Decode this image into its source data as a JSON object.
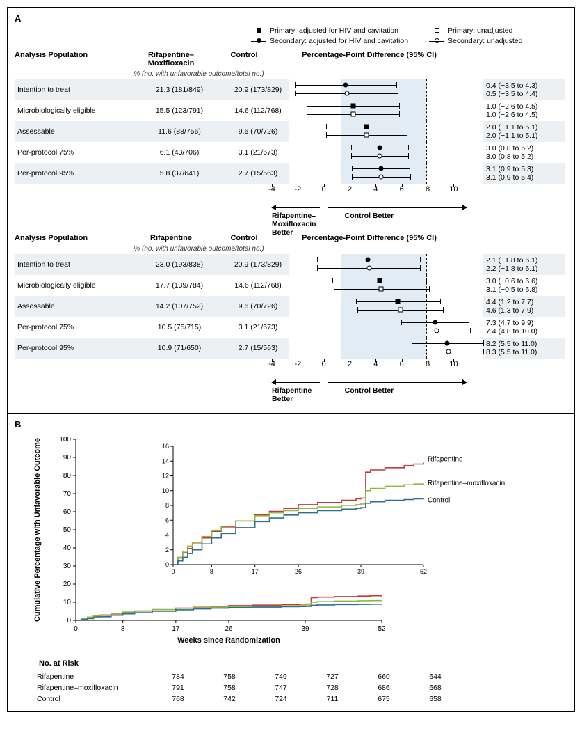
{
  "legend": {
    "items": [
      {
        "sym": "filled-square",
        "label": "Primary: adjusted for HIV and cavitation"
      },
      {
        "sym": "filled-circle",
        "label": "Secondary: adjusted for HIV and cavitation"
      },
      {
        "sym": "open-square",
        "label": "Primary: unadjusted"
      },
      {
        "sym": "open-circle",
        "label": "Secondary: unadjusted"
      }
    ]
  },
  "panelA": {
    "label": "A",
    "shade_from": 0,
    "shade_to": 6.6,
    "xmin": -4,
    "xmax": 11,
    "ticks": [
      -4,
      -2,
      0,
      2,
      4,
      6,
      8,
      10
    ],
    "forests": [
      {
        "armLabel": "Rifapentine–Moxifloxacin",
        "ctrlLabel": "Control",
        "ppdLabel": "Percentage-Point Difference (95% CI)",
        "subhead": "% (no. with unfavorable outcome/total no.)",
        "betterLeft": "Rifapentine–Moxifloxacin Better",
        "betterRight": "Control Better",
        "rows": [
          {
            "pop": "Intention to treat",
            "arm": "21.3 (181/849)",
            "ctrl": "20.9 (173/829)",
            "lines": [
              {
                "sym": "filled-circle",
                "est": 0.4,
                "lo": -3.5,
                "hi": 4.3,
                "txt": "0.4 (−3.5 to 4.3)"
              },
              {
                "sym": "open-circle",
                "est": 0.5,
                "lo": -3.5,
                "hi": 4.4,
                "txt": "0.5 (−3.5 to 4.4)"
              }
            ]
          },
          {
            "pop": "Microbiologically eligible",
            "arm": "15.5 (123/791)",
            "ctrl": "14.6 (112/768)",
            "lines": [
              {
                "sym": "filled-square",
                "est": 1.0,
                "lo": -2.6,
                "hi": 4.5,
                "txt": "1.0 (−2.6 to 4.5)"
              },
              {
                "sym": "open-square",
                "est": 1.0,
                "lo": -2.6,
                "hi": 4.5,
                "txt": "1.0 (−2.6 to 4.5)"
              }
            ]
          },
          {
            "pop": "Assessable",
            "arm": "11.6 (88/756)",
            "ctrl": "9.6 (70/726)",
            "lines": [
              {
                "sym": "filled-square",
                "est": 2.0,
                "lo": -1.1,
                "hi": 5.1,
                "txt": "2.0 (−1.1 to 5.1)"
              },
              {
                "sym": "open-square",
                "est": 2.0,
                "lo": -1.1,
                "hi": 5.1,
                "txt": "2.0 (−1.1 to 5.1)"
              }
            ]
          },
          {
            "pop": "Per-protocol 75%",
            "arm": "6.1 (43/706)",
            "ctrl": "3.1 (21/673)",
            "lines": [
              {
                "sym": "filled-circle",
                "est": 3.0,
                "lo": 0.8,
                "hi": 5.2,
                "txt": "3.0 (0.8 to 5.2)"
              },
              {
                "sym": "open-circle",
                "est": 3.0,
                "lo": 0.8,
                "hi": 5.2,
                "txt": "3.0 (0.8 to 5.2)"
              }
            ]
          },
          {
            "pop": "Per-protocol 95%",
            "arm": "5.8 (37/641)",
            "ctrl": "2.7 (15/563)",
            "lines": [
              {
                "sym": "filled-circle",
                "est": 3.1,
                "lo": 0.9,
                "hi": 5.3,
                "txt": "3.1 (0.9 to 5.3)"
              },
              {
                "sym": "open-circle",
                "est": 3.1,
                "lo": 0.9,
                "hi": 5.4,
                "txt": "3.1 (0.9 to 5.4)"
              }
            ]
          }
        ]
      },
      {
        "armLabel": "Rifapentine",
        "ctrlLabel": "Control",
        "ppdLabel": "Percentage-Point Difference (95% CI)",
        "subhead": "% (no. with unfavorable outcome/total no.)",
        "betterLeft": "Rifapentine Better",
        "betterRight": "Control Better",
        "rows": [
          {
            "pop": "Intention to treat",
            "arm": "23.0 (193/838)",
            "ctrl": "20.9 (173/829)",
            "lines": [
              {
                "sym": "filled-circle",
                "est": 2.1,
                "lo": -1.8,
                "hi": 6.1,
                "txt": "2.1 (−1.8 to 6.1)"
              },
              {
                "sym": "open-circle",
                "est": 2.2,
                "lo": -1.8,
                "hi": 6.1,
                "txt": "2.2 (−1.8 to 6.1)"
              }
            ]
          },
          {
            "pop": "Microbiologically eligible",
            "arm": "17.7 (139/784)",
            "ctrl": "14.6 (112/768)",
            "lines": [
              {
                "sym": "filled-square",
                "est": 3.0,
                "lo": -0.6,
                "hi": 6.6,
                "txt": "3.0 (−0.6 to 6.6)"
              },
              {
                "sym": "open-square",
                "est": 3.1,
                "lo": -0.5,
                "hi": 6.8,
                "txt": "3.1 (−0.5 to 6.8)"
              }
            ]
          },
          {
            "pop": "Assessable",
            "arm": "14.2 (107/752)",
            "ctrl": "9.6 (70/726)",
            "lines": [
              {
                "sym": "filled-square",
                "est": 4.4,
                "lo": 1.2,
                "hi": 7.7,
                "txt": "4.4 (1.2 to 7.7)"
              },
              {
                "sym": "open-square",
                "est": 4.6,
                "lo": 1.3,
                "hi": 7.9,
                "txt": "4.6 (1.3 to 7.9)"
              }
            ]
          },
          {
            "pop": "Per-protocol 75%",
            "arm": "10.5 (75/715)",
            "ctrl": "3.1 (21/673)",
            "lines": [
              {
                "sym": "filled-circle",
                "est": 7.3,
                "lo": 4.7,
                "hi": 9.9,
                "txt": "7.3 (4.7 to 9.9)"
              },
              {
                "sym": "open-circle",
                "est": 7.4,
                "lo": 4.8,
                "hi": 10.0,
                "txt": "7.4 (4.8 to 10.0)"
              }
            ]
          },
          {
            "pop": "Per-protocol 95%",
            "arm": "10.9 (71/650)",
            "ctrl": "2.7 (15/563)",
            "lines": [
              {
                "sym": "filled-circle",
                "est": 8.2,
                "lo": 5.5,
                "hi": 11.0,
                "txt": "8.2 (5.5 to 11.0)"
              },
              {
                "sym": "open-circle",
                "est": 8.3,
                "lo": 5.5,
                "hi": 11.0,
                "txt": "8.3 (5.5 to 11.0)"
              }
            ]
          }
        ]
      }
    ]
  },
  "panelB": {
    "label": "B",
    "ylab": "Cumulative Percentage with Unfavorable Outcome",
    "xlab": "Weeks since Randomization",
    "main": {
      "xmin": 0,
      "xmax": 52,
      "xticks": [
        0,
        8,
        17,
        26,
        39,
        52
      ],
      "ymin": 0,
      "ymax": 100,
      "yticks": [
        0,
        10,
        20,
        30,
        40,
        50,
        60,
        70,
        80,
        90,
        100
      ]
    },
    "inset": {
      "xmin": 0,
      "xmax": 52,
      "xticks": [
        0,
        8,
        17,
        26,
        39,
        52
      ],
      "ymin": 0,
      "ymax": 16,
      "yticks": [
        0,
        2,
        4,
        6,
        8,
        10,
        12,
        14,
        16
      ],
      "labels": [
        {
          "name": "Rifapentine",
          "color": "#c23b3b"
        },
        {
          "name": "Rifapentine–moxifloxacin",
          "color": "#8fb73e"
        },
        {
          "name": "Control",
          "color": "#2f6e8e"
        }
      ]
    },
    "series": [
      {
        "name": "Rifapentine",
        "color": "#c23b3b",
        "pts": [
          [
            0,
            0
          ],
          [
            1,
            0.9
          ],
          [
            2,
            1.6
          ],
          [
            3,
            2.2
          ],
          [
            4,
            2.8
          ],
          [
            6,
            3.6
          ],
          [
            8,
            4.5
          ],
          [
            10,
            5.1
          ],
          [
            13,
            5.9
          ],
          [
            17,
            6.7
          ],
          [
            20,
            7.2
          ],
          [
            23,
            7.6
          ],
          [
            26,
            8.1
          ],
          [
            30,
            8.4
          ],
          [
            35,
            8.7
          ],
          [
            38,
            8.9
          ],
          [
            39,
            9.0
          ],
          [
            40,
            12.5
          ],
          [
            41,
            12.8
          ],
          [
            44,
            13.1
          ],
          [
            48,
            13.4
          ],
          [
            50,
            13.6
          ],
          [
            52,
            13.8
          ]
        ]
      },
      {
        "name": "Rifapentine–moxifloxacin",
        "color": "#8fb73e",
        "pts": [
          [
            0,
            0
          ],
          [
            1,
            1.0
          ],
          [
            2,
            1.8
          ],
          [
            3,
            2.5
          ],
          [
            4,
            3.0
          ],
          [
            6,
            3.8
          ],
          [
            8,
            4.6
          ],
          [
            10,
            5.2
          ],
          [
            13,
            5.9
          ],
          [
            17,
            6.6
          ],
          [
            20,
            7.0
          ],
          [
            23,
            7.3
          ],
          [
            26,
            7.6
          ],
          [
            30,
            7.8
          ],
          [
            35,
            8.0
          ],
          [
            38,
            8.1
          ],
          [
            39,
            8.2
          ],
          [
            40,
            10.0
          ],
          [
            41,
            10.3
          ],
          [
            44,
            10.6
          ],
          [
            48,
            10.8
          ],
          [
            50,
            10.9
          ],
          [
            52,
            11.0
          ]
        ]
      },
      {
        "name": "Control",
        "color": "#2f6e8e",
        "pts": [
          [
            0,
            0
          ],
          [
            1,
            0.5
          ],
          [
            2,
            1.0
          ],
          [
            3,
            1.5
          ],
          [
            4,
            2.0
          ],
          [
            6,
            2.8
          ],
          [
            8,
            3.6
          ],
          [
            10,
            4.2
          ],
          [
            13,
            5.0
          ],
          [
            17,
            5.8
          ],
          [
            20,
            6.3
          ],
          [
            23,
            6.7
          ],
          [
            26,
            7.0
          ],
          [
            30,
            7.3
          ],
          [
            35,
            7.5
          ],
          [
            38,
            7.6
          ],
          [
            39,
            7.7
          ],
          [
            40,
            8.3
          ],
          [
            41,
            8.5
          ],
          [
            44,
            8.7
          ],
          [
            48,
            8.8
          ],
          [
            50,
            8.9
          ],
          [
            52,
            9.0
          ]
        ]
      }
    ],
    "risk": {
      "header": "No. at Risk",
      "cols": [
        0,
        8,
        17,
        26,
        39,
        52
      ],
      "rows": [
        {
          "name": "Rifapentine",
          "vals": [
            784,
            758,
            749,
            727,
            660,
            644
          ]
        },
        {
          "name": "Rifapentine–moxifloxacin",
          "vals": [
            791,
            758,
            747,
            728,
            686,
            668
          ]
        },
        {
          "name": "Control",
          "vals": [
            768,
            742,
            724,
            711,
            675,
            658
          ]
        }
      ]
    }
  },
  "colors": {
    "shade": "#e2ecf4",
    "zebra": "#edf0f2"
  }
}
